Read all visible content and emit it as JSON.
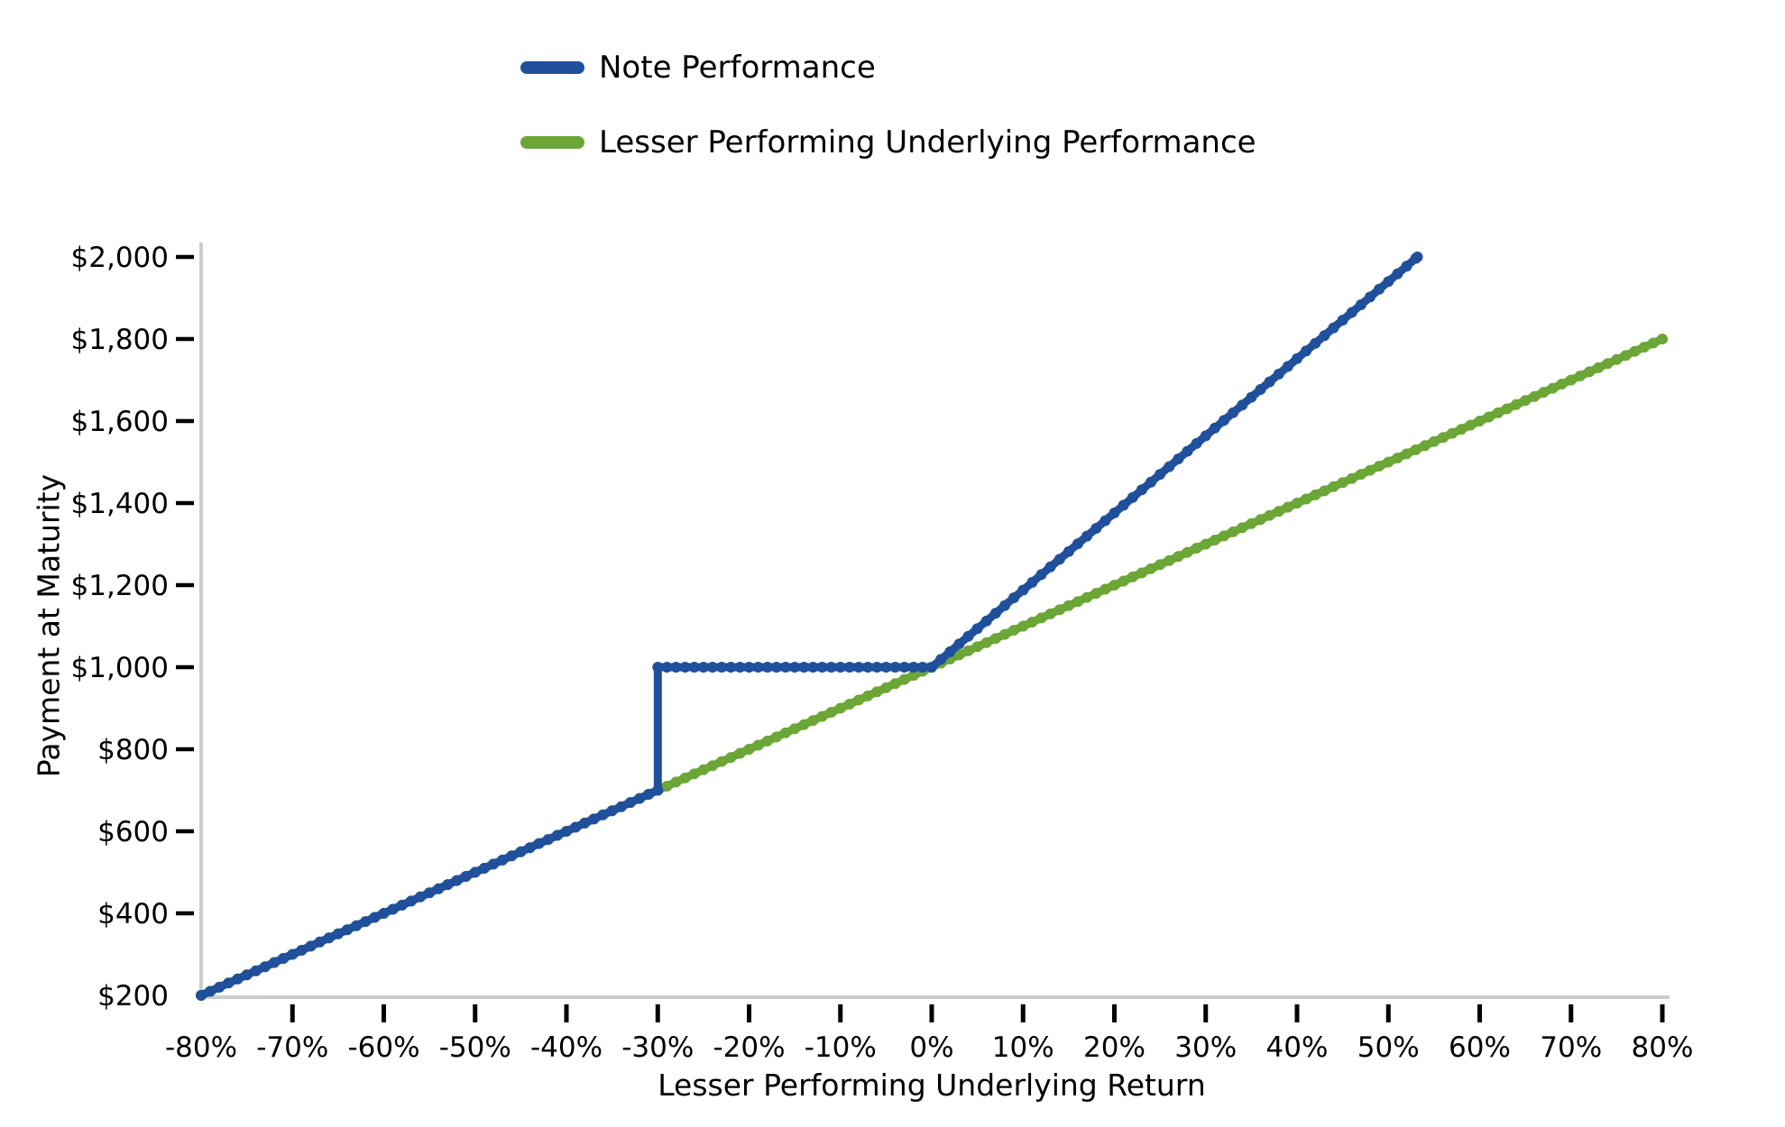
{
  "chart_data": {
    "type": "line",
    "title": "",
    "xlabel": "Lesser Performing Underlying Return",
    "ylabel": "Payment at Maturity",
    "xlim": [
      -80,
      80
    ],
    "ylim": [
      200,
      2000
    ],
    "grid": false,
    "legend_position": "top",
    "x_tick_values": [
      -80,
      -70,
      -60,
      -50,
      -40,
      -30,
      -20,
      -10,
      0,
      10,
      20,
      30,
      40,
      50,
      60,
      70,
      80
    ],
    "x_tick_labels": [
      "-80%",
      "-70%",
      "-60%",
      "-50%",
      "-40%",
      "-30%",
      "-20%",
      "-10%",
      "0%",
      "10%",
      "20%",
      "30%",
      "40%",
      "50%",
      "60%",
      "70%",
      "80%"
    ],
    "y_tick_values": [
      200,
      400,
      600,
      800,
      1000,
      1200,
      1400,
      1600,
      1800,
      2000
    ],
    "y_tick_labels": [
      "$200",
      "$400",
      "$600",
      "$800",
      "$1,000",
      "$1,200",
      "$1,400",
      "$1,600",
      "$1,800",
      "$2,000"
    ],
    "marker_step_pct": 1,
    "series": [
      {
        "name": "Note Performance",
        "color": "#20509B",
        "breakpoints": [
          [
            -80,
            200
          ],
          [
            -30,
            700
          ],
          [
            -30,
            1000
          ],
          [
            0,
            1000
          ],
          [
            53.19,
            2000
          ]
        ]
      },
      {
        "name": "Lesser Performing Underlying Performance",
        "color": "#6BA637",
        "breakpoints": [
          [
            -80,
            200
          ],
          [
            80,
            1800
          ]
        ]
      }
    ]
  }
}
